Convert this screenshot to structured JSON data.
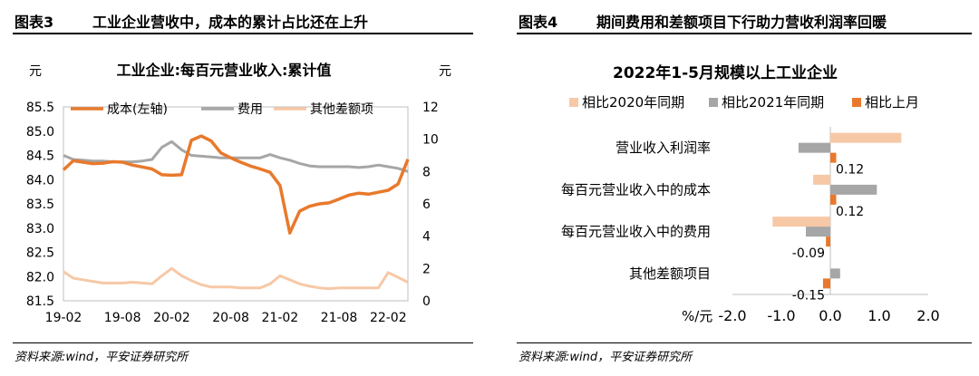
{
  "figures": [
    {
      "number": "图表3",
      "heading": "工业企业营收中，成本的累计占比还在上升",
      "source": "资料来源:wind，平安证券研究所"
    },
    {
      "number": "图表4",
      "heading": "期间费用和差额项目下行助力营收利润率回暖",
      "source": "资料来源:wind，平安证券研究所"
    }
  ],
  "chart_data": [
    {
      "type": "line",
      "title": "工业企业:每百元营业收入:累计值",
      "left_unit": "元",
      "right_unit": "元",
      "x": [
        "19-02",
        "19-03",
        "19-04",
        "19-05",
        "19-06",
        "19-07",
        "19-08",
        "19-09",
        "19-10",
        "19-11",
        "19-12",
        "20-02",
        "20-03",
        "20-04",
        "20-05",
        "20-06",
        "20-07",
        "20-08",
        "20-09",
        "20-10",
        "20-11",
        "20-12",
        "21-02",
        "21-03",
        "21-04",
        "21-05",
        "21-06",
        "21-07",
        "21-08",
        "21-09",
        "21-10",
        "21-11",
        "21-12",
        "22-02",
        "22-03",
        "22-04"
      ],
      "x_ticks": [
        "19-02",
        "19-08",
        "20-02",
        "20-08",
        "21-02",
        "21-08",
        "22-02"
      ],
      "y_left": {
        "min": 81.5,
        "max": 85.5,
        "ticks": [
          "85.5",
          "85.0",
          "84.5",
          "84.0",
          "83.5",
          "83.0",
          "82.5",
          "82.0",
          "81.5"
        ]
      },
      "y_right": {
        "min": 0,
        "max": 12,
        "ticks": [
          "12",
          "10",
          "8",
          "6",
          "4",
          "2",
          "0"
        ]
      },
      "legend_position": "top",
      "series": [
        {
          "name": "成本(左轴)",
          "axis": "left",
          "color": "#E8792C",
          "values": [
            84.2,
            84.39,
            84.36,
            84.33,
            84.34,
            84.37,
            84.36,
            84.3,
            84.26,
            84.22,
            84.1,
            84.09,
            84.1,
            84.81,
            84.9,
            84.8,
            84.55,
            84.45,
            84.36,
            84.28,
            84.22,
            84.15,
            83.88,
            82.9,
            83.35,
            83.45,
            83.5,
            83.52,
            83.6,
            83.68,
            83.72,
            83.7,
            83.74,
            83.78,
            83.91,
            84.42
          ]
        },
        {
          "name": "费用",
          "axis": "right",
          "color": "#A6A6A6",
          "values": [
            9.0,
            8.75,
            8.7,
            8.65,
            8.65,
            8.6,
            8.6,
            8.6,
            8.65,
            8.75,
            9.5,
            9.85,
            9.35,
            9.0,
            8.95,
            8.9,
            8.85,
            8.85,
            8.85,
            8.85,
            8.85,
            9.05,
            8.85,
            8.7,
            8.5,
            8.35,
            8.3,
            8.3,
            8.3,
            8.3,
            8.25,
            8.3,
            8.4,
            8.3,
            8.2,
            8.0
          ]
        },
        {
          "name": "其他差额项",
          "axis": "right",
          "color": "#F7C8A6",
          "values": [
            1.8,
            1.4,
            1.3,
            1.2,
            1.1,
            1.1,
            1.1,
            1.15,
            1.1,
            1.05,
            1.55,
            2.0,
            1.55,
            1.25,
            1.0,
            0.85,
            0.85,
            0.85,
            0.8,
            0.8,
            0.8,
            1.05,
            1.55,
            1.3,
            1.05,
            0.9,
            0.8,
            0.75,
            0.8,
            0.8,
            0.8,
            0.8,
            0.8,
            1.75,
            1.45,
            1.15
          ]
        }
      ]
    },
    {
      "type": "bar",
      "orientation": "horizontal",
      "title": "2022年1-5月规模以上工业企业",
      "unit_label": "%/元",
      "categories": [
        "营业收入利润率",
        "每百元营业收入中的成本",
        "每百元营业收入中的费用",
        "其他差额项目"
      ],
      "xlim": [
        -2.0,
        2.0
      ],
      "x_ticks": [
        "-2.0",
        "-1.0",
        "0.0",
        "1.0",
        "2.0"
      ],
      "legend_position": "top",
      "series": [
        {
          "name": "相比2020年同期",
          "color": "#F7C8A6",
          "values": [
            1.45,
            -0.35,
            -1.18,
            0.0
          ]
        },
        {
          "name": "相比2021年同期",
          "color": "#A6A6A6",
          "values": [
            -0.65,
            0.95,
            -0.5,
            0.2
          ]
        },
        {
          "name": "相比上月",
          "color": "#E8792C",
          "values": [
            0.12,
            0.12,
            -0.09,
            -0.15
          ]
        }
      ],
      "data_labels": [
        "0.12",
        "0.12",
        "-0.09",
        "-0.15"
      ]
    }
  ]
}
